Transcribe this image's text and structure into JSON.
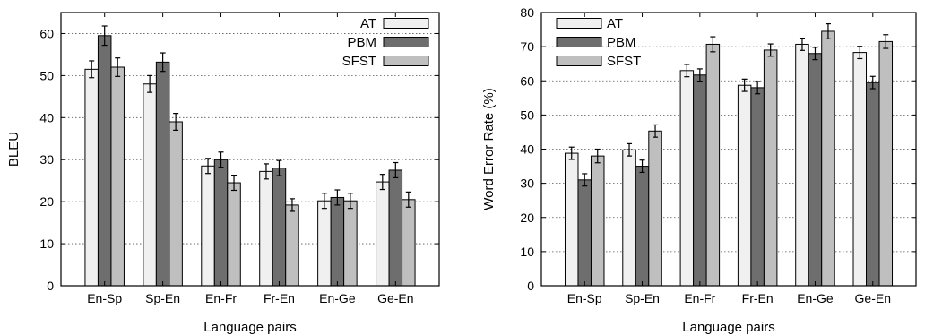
{
  "chart_data": [
    {
      "type": "bar",
      "xlabel": "Language pairs",
      "ylabel": "BLEU",
      "ylim": [
        0,
        65
      ],
      "yticks": [
        0,
        10,
        20,
        30,
        40,
        50,
        60
      ],
      "grid": "horizontal dotted",
      "legend_position": "top-right",
      "categories": [
        "En-Sp",
        "Sp-En",
        "En-Fr",
        "Fr-En",
        "En-Ge",
        "Ge-En"
      ],
      "series": [
        {
          "name": "AT",
          "color": "#f0f0f0",
          "values": [
            51.5,
            48.0,
            28.5,
            27.2,
            20.2,
            24.7
          ],
          "errors": [
            2.0,
            2.0,
            1.8,
            1.8,
            1.8,
            1.8
          ]
        },
        {
          "name": "PBM",
          "color": "#6e6e6e",
          "values": [
            59.5,
            53.2,
            30.0,
            28.0,
            21.0,
            27.5
          ],
          "errors": [
            2.3,
            2.2,
            1.8,
            1.8,
            1.8,
            1.8
          ]
        },
        {
          "name": "SFST",
          "color": "#bfbfbf",
          "values": [
            52.0,
            39.0,
            24.5,
            19.2,
            20.2,
            20.5
          ],
          "errors": [
            2.2,
            2.0,
            1.8,
            1.5,
            1.8,
            1.8
          ]
        }
      ]
    },
    {
      "type": "bar",
      "xlabel": "Language pairs",
      "ylabel": "Word Error Rate (%)",
      "ylim": [
        0,
        80
      ],
      "yticks": [
        0,
        10,
        20,
        30,
        40,
        50,
        60,
        70,
        80
      ],
      "grid": "horizontal dotted",
      "legend_position": "top-left",
      "categories": [
        "En-Sp",
        "Sp-En",
        "En-Fr",
        "Fr-En",
        "En-Ge",
        "Ge-En"
      ],
      "series": [
        {
          "name": "AT",
          "color": "#f0f0f0",
          "values": [
            38.8,
            39.8,
            63.0,
            58.7,
            70.7,
            68.3
          ],
          "errors": [
            1.8,
            1.8,
            1.8,
            1.8,
            1.8,
            1.8
          ]
        },
        {
          "name": "PBM",
          "color": "#6e6e6e",
          "values": [
            31.0,
            35.0,
            61.7,
            58.0,
            68.0,
            59.5
          ],
          "errors": [
            1.8,
            1.8,
            1.8,
            1.8,
            1.8,
            1.8
          ]
        },
        {
          "name": "SFST",
          "color": "#bfbfbf",
          "values": [
            38.0,
            45.3,
            70.7,
            69.0,
            74.5,
            71.5
          ],
          "errors": [
            2.0,
            1.8,
            2.2,
            1.8,
            2.2,
            2.0
          ]
        }
      ]
    }
  ]
}
